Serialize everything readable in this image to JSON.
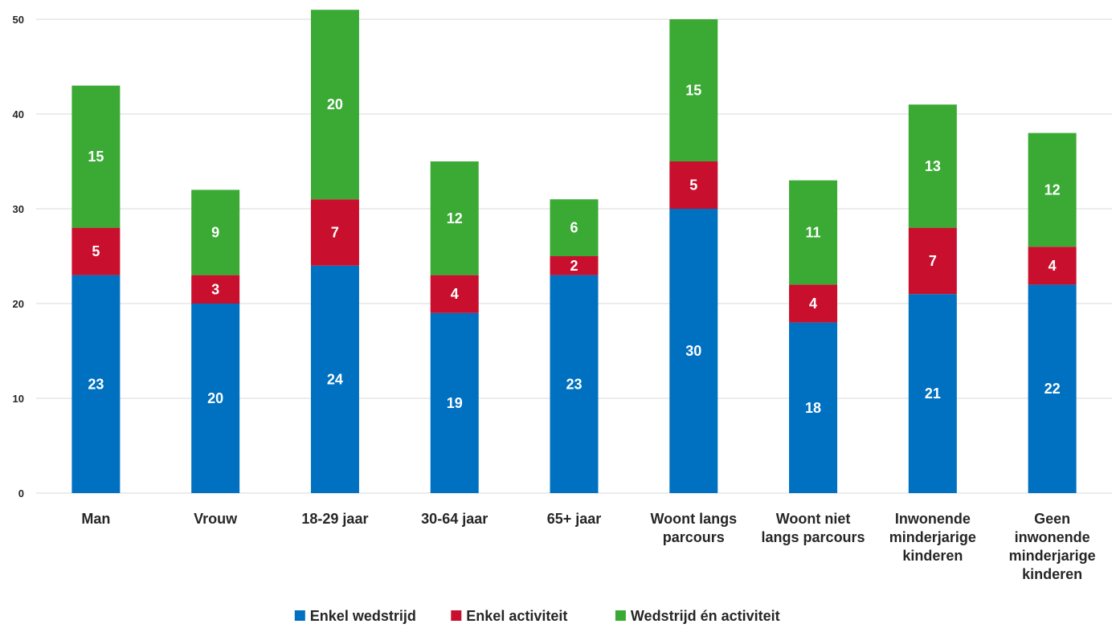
{
  "chart_data": {
    "type": "bar",
    "stacked": true,
    "categories": [
      [
        "Man"
      ],
      [
        "Vrouw"
      ],
      [
        "18-29 jaar"
      ],
      [
        "30-64 jaar"
      ],
      [
        "65+ jaar"
      ],
      [
        "Woont langs",
        "parcours"
      ],
      [
        "Woont niet",
        "langs parcours"
      ],
      [
        "Inwonende",
        "minderjarige",
        "kinderen"
      ],
      [
        "Geen",
        "inwonende",
        "minderjarige",
        "kinderen"
      ]
    ],
    "series": [
      {
        "name": "Enkel wedstrijd",
        "color": "#0070C0",
        "values": [
          23,
          20,
          24,
          19,
          23,
          30,
          18,
          21,
          22
        ]
      },
      {
        "name": "Enkel activiteit",
        "color": "#C8102E",
        "values": [
          5,
          3,
          7,
          4,
          2,
          5,
          4,
          7,
          4
        ]
      },
      {
        "name": "Wedstrijd én activiteit",
        "color": "#3AAA35",
        "values": [
          15,
          9,
          20,
          12,
          6,
          15,
          11,
          13,
          12
        ]
      }
    ],
    "ylim": [
      0,
      50
    ],
    "yticks": [
      0,
      10,
      20,
      30,
      40,
      50
    ],
    "grid": true,
    "legend": "bottom",
    "data_labels": true,
    "gridColor": "#D9D9D9"
  }
}
